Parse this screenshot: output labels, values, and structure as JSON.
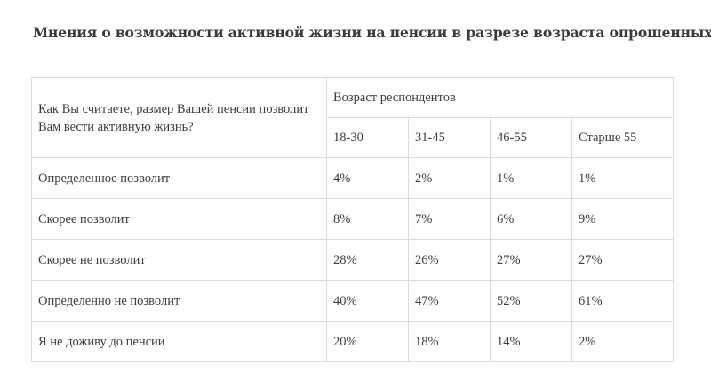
{
  "title": "Мнения о возможности активной жизни на пенсии в разрезе возраста опрошенных",
  "table": {
    "question": "Как Вы считаете, размер Вашей пенсии позволит Вам вести активную жизнь?",
    "group_header": "Возраст респондентов",
    "columns": [
      "18-30",
      "31-45",
      "46-55",
      "Старше 55"
    ],
    "rows": [
      {
        "label": "Определенное позволит",
        "values": [
          "4%",
          "2%",
          "1%",
          "1%"
        ]
      },
      {
        "label": "Скорее позволит",
        "values": [
          "8%",
          "7%",
          "6%",
          "9%"
        ]
      },
      {
        "label": "Скорее не позволит",
        "values": [
          "28%",
          "26%",
          "27%",
          "27%"
        ]
      },
      {
        "label": "Определенно не позволит",
        "values": [
          "40%",
          "47%",
          "52%",
          "61%"
        ]
      },
      {
        "label": "Я не доживу до пенсии",
        "values": [
          "20%",
          "18%",
          "14%",
          "2%"
        ]
      }
    ]
  }
}
